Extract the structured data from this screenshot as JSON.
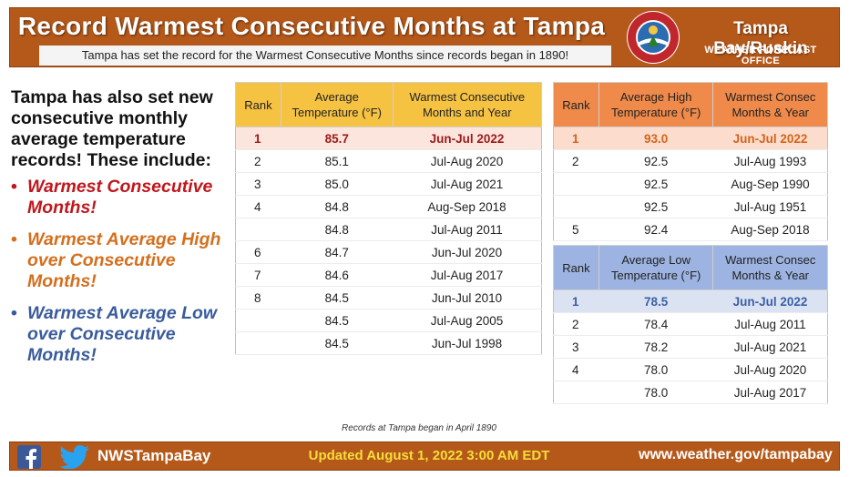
{
  "header": {
    "title": "Record Warmest Consecutive Months at Tampa",
    "subtitle": "Tampa has set the record for the Warmest Consecutive Months since records began in 1890!",
    "logo_text": "NATIONAL WEATHER SERVICE",
    "logo_inner": "TAMPA BAY",
    "office_name": "Tampa Bay/Ruskin",
    "office_subtitle": "WEATHER FORECAST OFFICE"
  },
  "intro": "Tampa has also set new consecutive monthly average temperature records! These include:",
  "bullets": [
    "Warmest Consecutive Months!",
    "Warmest Average High over Consecutive Months!",
    "Warmest Average Low over Consecutive Months!"
  ],
  "tables": {
    "average": {
      "headers": [
        "Rank",
        "Average Temperature (°F)",
        "Warmest Consecutive Months and Year"
      ],
      "rows": [
        [
          "1",
          "85.7",
          "Jun-Jul 2022"
        ],
        [
          "2",
          "85.1",
          "Jul-Aug 2020"
        ],
        [
          "3",
          "85.0",
          "Jul-Aug 2021"
        ],
        [
          "4",
          "84.8",
          "Aug-Sep 2018"
        ],
        [
          "",
          "84.8",
          "Jul-Aug 2011"
        ],
        [
          "6",
          "84.7",
          "Jun-Jul 2020"
        ],
        [
          "7",
          "84.6",
          "Jul-Aug 2017"
        ],
        [
          "8",
          "84.5",
          "Jun-Jul 2010"
        ],
        [
          "",
          "84.5",
          "Jul-Aug 2005"
        ],
        [
          "",
          "84.5",
          "Jun-Jul 1998"
        ]
      ]
    },
    "high": {
      "headers": [
        "Rank",
        "Average High Temperature (°F)",
        "Warmest Consec Months & Year"
      ],
      "rows": [
        [
          "1",
          "93.0",
          "Jun-Jul 2022"
        ],
        [
          "2",
          "92.5",
          "Jul-Aug 1993"
        ],
        [
          "",
          "92.5",
          "Aug-Sep 1990"
        ],
        [
          "",
          "92.5",
          "Jul-Aug 1951"
        ],
        [
          "5",
          "92.4",
          "Aug-Sep 2018"
        ]
      ]
    },
    "low": {
      "headers": [
        "Rank",
        "Average Low Temperature (°F)",
        "Warmest Consec Months & Year"
      ],
      "rows": [
        [
          "1",
          "78.5",
          "Jun-Jul 2022"
        ],
        [
          "2",
          "78.4",
          "Jul-Aug 2011"
        ],
        [
          "3",
          "78.2",
          "Jul-Aug 2021"
        ],
        [
          "4",
          "78.0",
          "Jul-Aug 2020"
        ],
        [
          "",
          "78.0",
          "Jul-Aug 2017"
        ]
      ]
    }
  },
  "note": "Records at Tampa began in April 1890",
  "footer": {
    "handle": "NWSTampaBay",
    "updated": "Updated August 1, 2022 3:00 AM EDT",
    "url": "www.weather.gov/tampabay"
  },
  "colors": {
    "banner": "#b5591b",
    "average_header": "#f6c242",
    "high_header": "#ef8a4b",
    "low_header": "#9db4e2",
    "record_red": "#9b1b1b",
    "record_orange": "#d4641b",
    "record_blue": "#3c60a8"
  }
}
